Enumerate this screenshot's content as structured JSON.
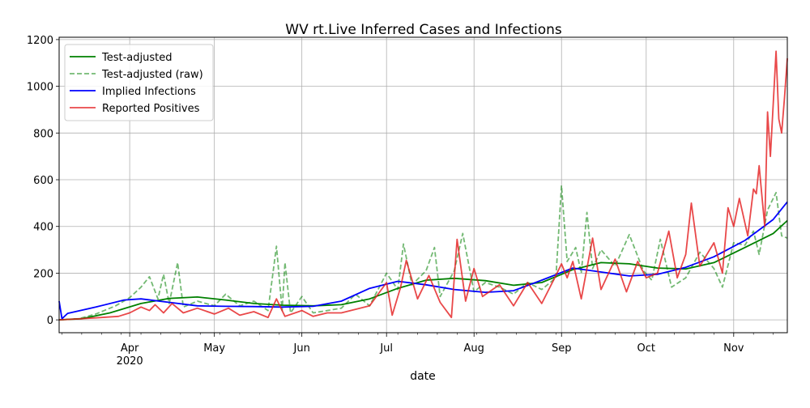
{
  "chart_data": {
    "type": "line",
    "title": "WV rt.Live Inferred Cases and Infections",
    "xlabel": "date",
    "ylabel": "",
    "x_start": "2020-03-07",
    "x_end": "2020-11-20",
    "ylim": [
      -55,
      1210
    ],
    "yticks": [
      0,
      200,
      400,
      600,
      800,
      1000,
      1200
    ],
    "xticks": [
      {
        "date": "2020-04-01",
        "label": "Apr",
        "sublabel": "2020"
      },
      {
        "date": "2020-05-01",
        "label": "May"
      },
      {
        "date": "2020-06-01",
        "label": "Jun"
      },
      {
        "date": "2020-07-01",
        "label": "Jul"
      },
      {
        "date": "2020-08-01",
        "label": "Aug"
      },
      {
        "date": "2020-09-01",
        "label": "Sep"
      },
      {
        "date": "2020-10-01",
        "label": "Oct"
      },
      {
        "date": "2020-11-01",
        "label": "Nov"
      }
    ],
    "grid": true,
    "legend_position": "upper-left",
    "series": [
      {
        "name": "Test-adjusted",
        "color": "#008000",
        "style": "solid",
        "points": [
          [
            "2020-03-07",
            0
          ],
          [
            "2020-03-15",
            5
          ],
          [
            "2020-03-25",
            30
          ],
          [
            "2020-04-05",
            70
          ],
          [
            "2020-04-15",
            92
          ],
          [
            "2020-04-25",
            98
          ],
          [
            "2020-05-05",
            85
          ],
          [
            "2020-05-15",
            70
          ],
          [
            "2020-05-25",
            63
          ],
          [
            "2020-06-05",
            60
          ],
          [
            "2020-06-15",
            65
          ],
          [
            "2020-06-25",
            90
          ],
          [
            "2020-07-05",
            135
          ],
          [
            "2020-07-15",
            170
          ],
          [
            "2020-07-25",
            178
          ],
          [
            "2020-08-05",
            168
          ],
          [
            "2020-08-15",
            148
          ],
          [
            "2020-08-25",
            160
          ],
          [
            "2020-09-05",
            215
          ],
          [
            "2020-09-15",
            245
          ],
          [
            "2020-09-25",
            240
          ],
          [
            "2020-10-05",
            222
          ],
          [
            "2020-10-15",
            218
          ],
          [
            "2020-10-25",
            245
          ],
          [
            "2020-11-05",
            310
          ],
          [
            "2020-11-15",
            370
          ],
          [
            "2020-11-20",
            425
          ]
        ]
      },
      {
        "name": "Test-adjusted (raw)",
        "color": "#008000",
        "style": "dashed",
        "points": [
          [
            "2020-03-07",
            0
          ],
          [
            "2020-03-14",
            5
          ],
          [
            "2020-03-20",
            25
          ],
          [
            "2020-03-27",
            60
          ],
          [
            "2020-04-01",
            95
          ],
          [
            "2020-04-05",
            140
          ],
          [
            "2020-04-08",
            185
          ],
          [
            "2020-04-11",
            90
          ],
          [
            "2020-04-13",
            195
          ],
          [
            "2020-04-15",
            70
          ],
          [
            "2020-04-18",
            245
          ],
          [
            "2020-04-20",
            55
          ],
          [
            "2020-04-25",
            80
          ],
          [
            "2020-05-01",
            60
          ],
          [
            "2020-05-05",
            110
          ],
          [
            "2020-05-10",
            60
          ],
          [
            "2020-05-15",
            80
          ],
          [
            "2020-05-20",
            40
          ],
          [
            "2020-05-23",
            315
          ],
          [
            "2020-05-25",
            40
          ],
          [
            "2020-05-26",
            245
          ],
          [
            "2020-05-28",
            30
          ],
          [
            "2020-06-01",
            100
          ],
          [
            "2020-06-05",
            30
          ],
          [
            "2020-06-10",
            40
          ],
          [
            "2020-06-15",
            50
          ],
          [
            "2020-06-20",
            110
          ],
          [
            "2020-06-25",
            60
          ],
          [
            "2020-07-01",
            200
          ],
          [
            "2020-07-05",
            130
          ],
          [
            "2020-07-07",
            325
          ],
          [
            "2020-07-10",
            150
          ],
          [
            "2020-07-15",
            210
          ],
          [
            "2020-07-18",
            310
          ],
          [
            "2020-07-20",
            100
          ],
          [
            "2020-07-25",
            210
          ],
          [
            "2020-07-28",
            370
          ],
          [
            "2020-08-01",
            120
          ],
          [
            "2020-08-05",
            160
          ],
          [
            "2020-08-10",
            140
          ],
          [
            "2020-08-15",
            110
          ],
          [
            "2020-08-20",
            160
          ],
          [
            "2020-08-25",
            130
          ],
          [
            "2020-08-30",
            180
          ],
          [
            "2020-09-01",
            575
          ],
          [
            "2020-09-03",
            250
          ],
          [
            "2020-09-06",
            310
          ],
          [
            "2020-09-08",
            200
          ],
          [
            "2020-09-10",
            460
          ],
          [
            "2020-09-12",
            220
          ],
          [
            "2020-09-15",
            300
          ],
          [
            "2020-09-20",
            230
          ],
          [
            "2020-09-25",
            365
          ],
          [
            "2020-09-30",
            210
          ],
          [
            "2020-10-03",
            170
          ],
          [
            "2020-10-06",
            345
          ],
          [
            "2020-10-10",
            140
          ],
          [
            "2020-10-15",
            180
          ],
          [
            "2020-10-20",
            290
          ],
          [
            "2020-10-25",
            220
          ],
          [
            "2020-10-28",
            140
          ],
          [
            "2020-11-01",
            330
          ],
          [
            "2020-11-05",
            320
          ],
          [
            "2020-11-08",
            380
          ],
          [
            "2020-11-10",
            280
          ],
          [
            "2020-11-13",
            470
          ],
          [
            "2020-11-16",
            545
          ],
          [
            "2020-11-18",
            360
          ],
          [
            "2020-11-20",
            350
          ]
        ]
      },
      {
        "name": "Implied Infections",
        "color": "#0000ff",
        "style": "solid",
        "points": [
          [
            "2020-03-07",
            80
          ],
          [
            "2020-03-08",
            5
          ],
          [
            "2020-03-10",
            28
          ],
          [
            "2020-03-20",
            55
          ],
          [
            "2020-03-30",
            85
          ],
          [
            "2020-04-05",
            90
          ],
          [
            "2020-04-15",
            75
          ],
          [
            "2020-04-25",
            60
          ],
          [
            "2020-05-05",
            58
          ],
          [
            "2020-05-15",
            57
          ],
          [
            "2020-05-25",
            55
          ],
          [
            "2020-06-05",
            58
          ],
          [
            "2020-06-15",
            80
          ],
          [
            "2020-06-25",
            135
          ],
          [
            "2020-07-05",
            165
          ],
          [
            "2020-07-15",
            150
          ],
          [
            "2020-07-25",
            130
          ],
          [
            "2020-08-05",
            118
          ],
          [
            "2020-08-15",
            125
          ],
          [
            "2020-08-25",
            170
          ],
          [
            "2020-09-05",
            222
          ],
          [
            "2020-09-15",
            205
          ],
          [
            "2020-09-25",
            188
          ],
          [
            "2020-10-05",
            195
          ],
          [
            "2020-10-15",
            225
          ],
          [
            "2020-10-25",
            270
          ],
          [
            "2020-11-05",
            340
          ],
          [
            "2020-11-15",
            430
          ],
          [
            "2020-11-20",
            505
          ]
        ]
      },
      {
        "name": "Reported Positives",
        "color": "#e41a1c",
        "style": "solid",
        "points": [
          [
            "2020-03-07",
            0
          ],
          [
            "2020-03-15",
            5
          ],
          [
            "2020-03-22",
            10
          ],
          [
            "2020-03-28",
            15
          ],
          [
            "2020-04-01",
            30
          ],
          [
            "2020-04-05",
            55
          ],
          [
            "2020-04-08",
            40
          ],
          [
            "2020-04-10",
            65
          ],
          [
            "2020-04-13",
            30
          ],
          [
            "2020-04-16",
            70
          ],
          [
            "2020-04-20",
            30
          ],
          [
            "2020-04-25",
            50
          ],
          [
            "2020-05-01",
            25
          ],
          [
            "2020-05-06",
            50
          ],
          [
            "2020-05-10",
            20
          ],
          [
            "2020-05-15",
            35
          ],
          [
            "2020-05-20",
            10
          ],
          [
            "2020-05-23",
            90
          ],
          [
            "2020-05-26",
            15
          ],
          [
            "2020-06-01",
            40
          ],
          [
            "2020-06-05",
            15
          ],
          [
            "2020-06-10",
            30
          ],
          [
            "2020-06-15",
            30
          ],
          [
            "2020-06-20",
            45
          ],
          [
            "2020-06-25",
            60
          ],
          [
            "2020-07-01",
            160
          ],
          [
            "2020-07-03",
            20
          ],
          [
            "2020-07-06",
            140
          ],
          [
            "2020-07-08",
            255
          ],
          [
            "2020-07-12",
            90
          ],
          [
            "2020-07-16",
            190
          ],
          [
            "2020-07-20",
            75
          ],
          [
            "2020-07-24",
            10
          ],
          [
            "2020-07-26",
            345
          ],
          [
            "2020-07-29",
            80
          ],
          [
            "2020-08-01",
            220
          ],
          [
            "2020-08-04",
            100
          ],
          [
            "2020-08-10",
            150
          ],
          [
            "2020-08-15",
            60
          ],
          [
            "2020-08-20",
            160
          ],
          [
            "2020-08-25",
            70
          ],
          [
            "2020-08-30",
            190
          ],
          [
            "2020-09-01",
            240
          ],
          [
            "2020-09-03",
            180
          ],
          [
            "2020-09-05",
            250
          ],
          [
            "2020-09-08",
            90
          ],
          [
            "2020-09-12",
            350
          ],
          [
            "2020-09-15",
            130
          ],
          [
            "2020-09-20",
            260
          ],
          [
            "2020-09-24",
            120
          ],
          [
            "2020-09-28",
            250
          ],
          [
            "2020-10-01",
            180
          ],
          [
            "2020-10-05",
            200
          ],
          [
            "2020-10-09",
            380
          ],
          [
            "2020-10-12",
            180
          ],
          [
            "2020-10-15",
            280
          ],
          [
            "2020-10-17",
            500
          ],
          [
            "2020-10-20",
            230
          ],
          [
            "2020-10-25",
            330
          ],
          [
            "2020-10-28",
            200
          ],
          [
            "2020-10-30",
            480
          ],
          [
            "2020-11-01",
            400
          ],
          [
            "2020-11-03",
            520
          ],
          [
            "2020-11-06",
            360
          ],
          [
            "2020-11-08",
            560
          ],
          [
            "2020-11-09",
            540
          ],
          [
            "2020-11-10",
            660
          ],
          [
            "2020-11-12",
            400
          ],
          [
            "2020-11-13",
            890
          ],
          [
            "2020-11-14",
            700
          ],
          [
            "2020-11-16",
            1150
          ],
          [
            "2020-11-17",
            860
          ],
          [
            "2020-11-18",
            800
          ],
          [
            "2020-11-19",
            950
          ],
          [
            "2020-11-20",
            1120
          ]
        ]
      }
    ]
  }
}
